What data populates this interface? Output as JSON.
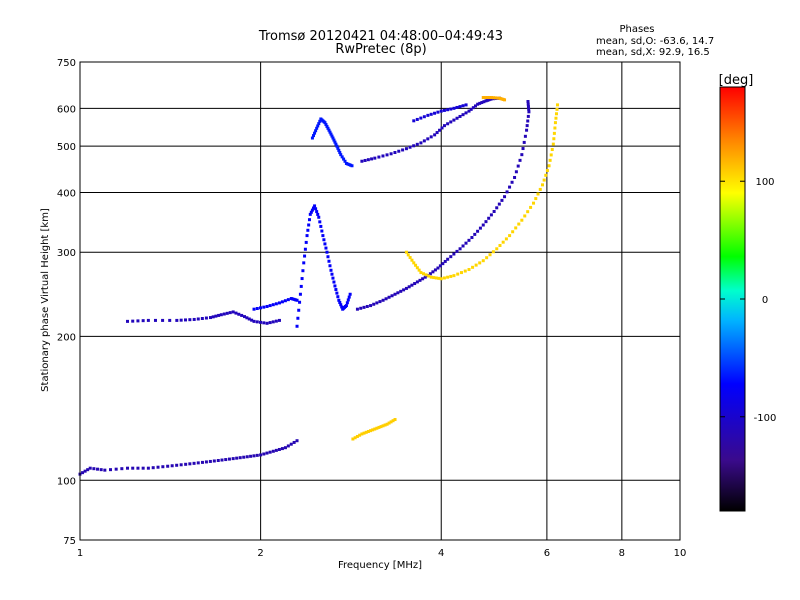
{
  "chart_data": {
    "type": "scatter",
    "title": "Tromsø 20120421 04:48:00–04:49:43",
    "subtitle": "RwPretec (8p)",
    "xlabel": "Frequency [MHz]",
    "ylabel": "Stationary phase Virtual Height [km]",
    "x_scale": "log",
    "y_scale": "log",
    "xlim": [
      1,
      10
    ],
    "ylim": [
      75,
      750
    ],
    "x_ticks": [
      1,
      2,
      4,
      6,
      8,
      10
    ],
    "x_tick_labels": [
      "1",
      "2",
      "4",
      "6",
      "8",
      "10"
    ],
    "y_ticks": [
      75,
      100,
      200,
      300,
      400,
      500,
      600,
      750
    ],
    "y_tick_labels": [
      "75",
      "100",
      "200",
      "300",
      "400",
      "500",
      "600",
      "750"
    ],
    "grid": true,
    "phase_stats": {
      "header": "Phases",
      "line_o": "mean, sd,O: -63.6, 14.7",
      "line_x": "mean, sd,X: 92.9, 16.5"
    },
    "colorbar": {
      "label": "[deg]",
      "range": [
        -180,
        180
      ],
      "ticks": [
        100,
        0,
        -100
      ],
      "tick_labels": [
        "100",
        "0",
        "-100"
      ]
    },
    "traces": [
      {
        "points": [
          [
            1.0,
            103
          ],
          [
            1.04,
            106
          ],
          [
            1.1,
            105
          ],
          [
            1.2,
            106
          ],
          [
            1.3,
            106
          ],
          [
            1.4,
            107
          ],
          [
            1.5,
            108
          ],
          [
            1.6,
            109
          ],
          [
            1.7,
            110
          ],
          [
            1.8,
            111
          ],
          [
            1.9,
            112
          ],
          [
            2.0,
            113
          ],
          [
            2.1,
            115
          ],
          [
            2.2,
            117
          ],
          [
            2.3,
            121
          ]
        ],
        "phase": -115
      },
      {
        "points": [
          [
            1.2,
            215
          ],
          [
            1.3,
            216
          ],
          [
            1.45,
            216
          ],
          [
            1.55,
            217
          ],
          [
            1.65,
            219
          ],
          [
            1.72,
            222
          ],
          [
            1.8,
            225
          ],
          [
            1.88,
            220
          ],
          [
            1.95,
            215
          ],
          [
            2.05,
            213
          ],
          [
            2.15,
            216
          ]
        ],
        "phase": -110
      },
      {
        "points": [
          [
            1.95,
            228
          ],
          [
            2.05,
            231
          ],
          [
            2.15,
            235
          ],
          [
            2.25,
            240
          ],
          [
            2.3,
            238
          ]
        ],
        "phase": -75
      },
      {
        "points": [
          [
            2.3,
            210
          ],
          [
            2.33,
            245
          ],
          [
            2.36,
            285
          ],
          [
            2.39,
            325
          ],
          [
            2.42,
            360
          ],
          [
            2.46,
            375
          ],
          [
            2.5,
            355
          ],
          [
            2.54,
            325
          ],
          [
            2.58,
            300
          ],
          [
            2.62,
            275
          ],
          [
            2.66,
            255
          ],
          [
            2.7,
            238
          ],
          [
            2.74,
            228
          ],
          [
            2.78,
            232
          ],
          [
            2.82,
            245
          ]
        ],
        "phase": -75
      },
      {
        "points": [
          [
            2.44,
            520
          ],
          [
            2.48,
            545
          ],
          [
            2.52,
            570
          ],
          [
            2.56,
            560
          ],
          [
            2.6,
            540
          ],
          [
            2.64,
            520
          ],
          [
            2.68,
            500
          ],
          [
            2.72,
            480
          ],
          [
            2.78,
            460
          ],
          [
            2.84,
            455
          ]
        ],
        "phase": -65
      },
      {
        "points": [
          [
            2.9,
            228
          ],
          [
            3.05,
            232
          ],
          [
            3.2,
            238
          ],
          [
            3.35,
            245
          ],
          [
            3.5,
            252
          ],
          [
            3.65,
            260
          ],
          [
            3.8,
            268
          ],
          [
            3.95,
            278
          ],
          [
            4.1,
            290
          ],
          [
            4.3,
            305
          ],
          [
            4.5,
            322
          ],
          [
            4.7,
            342
          ],
          [
            4.9,
            365
          ],
          [
            5.1,
            392
          ],
          [
            5.3,
            430
          ],
          [
            5.45,
            480
          ],
          [
            5.55,
            540
          ],
          [
            5.6,
            590
          ],
          [
            5.58,
            620
          ]
        ],
        "phase": -112
      },
      {
        "points": [
          [
            2.95,
            465
          ],
          [
            3.1,
            472
          ],
          [
            3.3,
            482
          ],
          [
            3.5,
            494
          ],
          [
            3.7,
            508
          ],
          [
            3.9,
            528
          ],
          [
            4.05,
            552
          ],
          [
            4.25,
            572
          ],
          [
            4.45,
            592
          ],
          [
            4.6,
            612
          ],
          [
            4.75,
            622
          ],
          [
            4.85,
            628
          ],
          [
            5.0,
            630
          ]
        ],
        "phase": -110
      },
      {
        "points": [
          [
            3.6,
            565
          ],
          [
            3.8,
            580
          ],
          [
            4.0,
            592
          ],
          [
            4.2,
            600
          ],
          [
            4.4,
            610
          ]
        ],
        "phase": -95
      },
      {
        "points": [
          [
            3.5,
            300
          ],
          [
            3.6,
            285
          ],
          [
            3.7,
            272
          ],
          [
            3.85,
            266
          ],
          [
            4.0,
            264
          ],
          [
            4.2,
            268
          ],
          [
            4.45,
            276
          ],
          [
            4.7,
            288
          ],
          [
            4.95,
            305
          ],
          [
            5.2,
            325
          ],
          [
            5.45,
            350
          ],
          [
            5.7,
            380
          ],
          [
            5.9,
            415
          ],
          [
            6.05,
            455
          ],
          [
            6.15,
            505
          ],
          [
            6.2,
            560
          ],
          [
            6.25,
            610
          ]
        ],
        "phase": 105
      },
      {
        "points": [
          [
            2.85,
            122
          ],
          [
            2.95,
            125
          ],
          [
            3.05,
            127
          ],
          [
            3.15,
            129
          ],
          [
            3.25,
            131
          ],
          [
            3.35,
            134
          ]
        ],
        "phase": 108
      },
      {
        "points": [
          [
            4.7,
            632
          ],
          [
            4.85,
            632
          ],
          [
            5.0,
            630
          ],
          [
            5.1,
            625
          ]
        ],
        "phase": 120
      }
    ]
  }
}
